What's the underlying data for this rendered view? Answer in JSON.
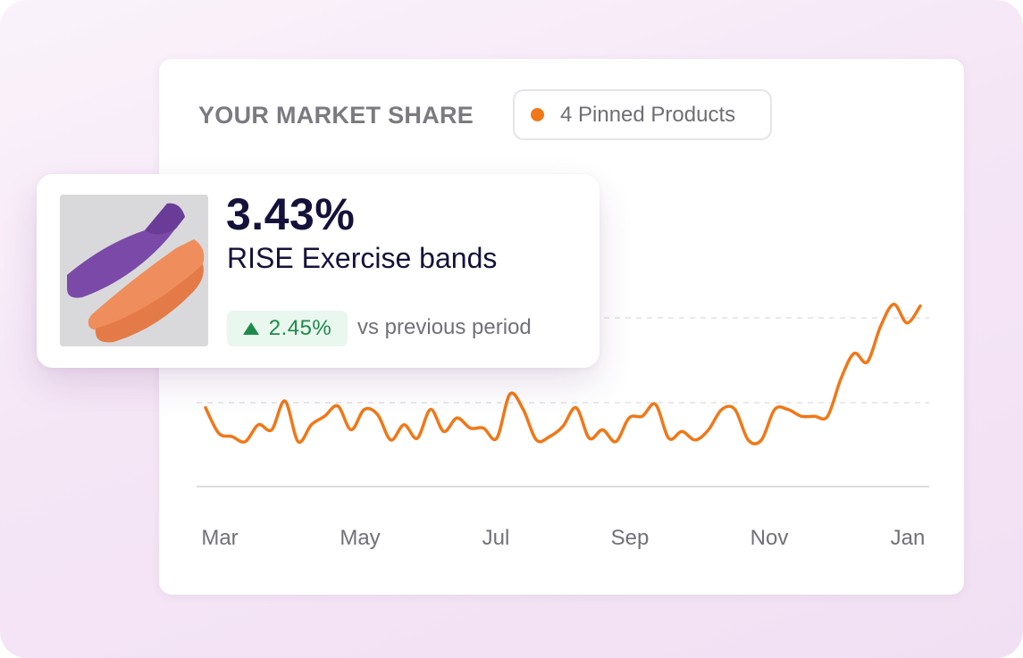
{
  "card": {
    "title": "YOUR MARKET SHARE",
    "pinned_label": "4 Pinned Products"
  },
  "popup": {
    "value": "3.43%",
    "product_name": "RISE Exercise bands",
    "change": "2.45%",
    "compare_label": "vs previous period"
  },
  "colors": {
    "series": "#f07818",
    "positive": "#1e8a4a",
    "positive_bg": "#e9f7ee",
    "title": "#14123a"
  },
  "icons": {
    "change": "triangle-up-icon",
    "legend": "orange-dot-icon"
  },
  "chart_data": {
    "type": "line",
    "title": "",
    "xlabel": "",
    "ylabel": "",
    "x_ticks": [
      "Mar",
      "May",
      "Jul",
      "Sep",
      "Nov",
      "Jan"
    ],
    "grid": "dashed horizontal",
    "series": [
      {
        "values": [
          2.47,
          2.32,
          2.3,
          2.27,
          2.37,
          2.34,
          2.51,
          2.27,
          2.37,
          2.42,
          2.48,
          2.34,
          2.46,
          2.43,
          2.28,
          2.37,
          2.29,
          2.46,
          2.33,
          2.41,
          2.35,
          2.35,
          2.29,
          2.55,
          2.46,
          2.28,
          2.3,
          2.36,
          2.47,
          2.29,
          2.34,
          2.27,
          2.41,
          2.42,
          2.49,
          2.29,
          2.33,
          2.28,
          2.34,
          2.46,
          2.46,
          2.28,
          2.28,
          2.46,
          2.46,
          2.42,
          2.42,
          2.42,
          2.64,
          2.79,
          2.74,
          2.95,
          3.08,
          2.97,
          3.07
        ]
      }
    ]
  }
}
